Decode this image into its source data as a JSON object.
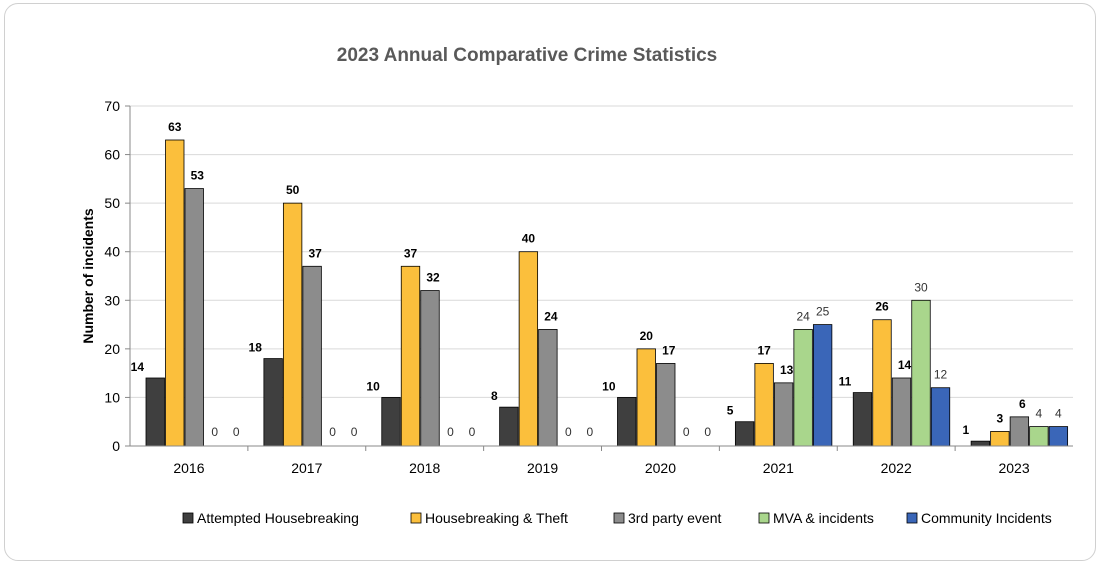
{
  "chart_data": {
    "type": "bar",
    "title": "2023 Annual Comparative Crime Statistics",
    "xlabel": "",
    "ylabel": "Number of incidents",
    "ylim": [
      0,
      70
    ],
    "yticks": [
      0,
      10,
      20,
      30,
      40,
      50,
      60,
      70
    ],
    "grid": true,
    "legend_position": "bottom",
    "categories": [
      "2016",
      "2017",
      "2018",
      "2019",
      "2020",
      "2021",
      "2022",
      "2023"
    ],
    "series": [
      {
        "name": "Attempted Housebreaking",
        "color": "#3f3f3f",
        "values": [
          14,
          18,
          10,
          8,
          10,
          5,
          11,
          1
        ]
      },
      {
        "name": "Housebreaking & Theft",
        "color": "#fbbf3c",
        "values": [
          63,
          50,
          37,
          40,
          20,
          17,
          26,
          3
        ]
      },
      {
        "name": "3rd party event",
        "color": "#8c8c8c",
        "values": [
          53,
          37,
          32,
          24,
          17,
          13,
          14,
          6
        ]
      },
      {
        "name": "MVA & incidents",
        "color": "#a9d68c",
        "values": [
          0,
          0,
          0,
          0,
          0,
          24,
          30,
          4
        ]
      },
      {
        "name": "Community Incidents",
        "color": "#3a66b8",
        "values": [
          0,
          0,
          0,
          0,
          0,
          25,
          12,
          4
        ]
      }
    ]
  }
}
